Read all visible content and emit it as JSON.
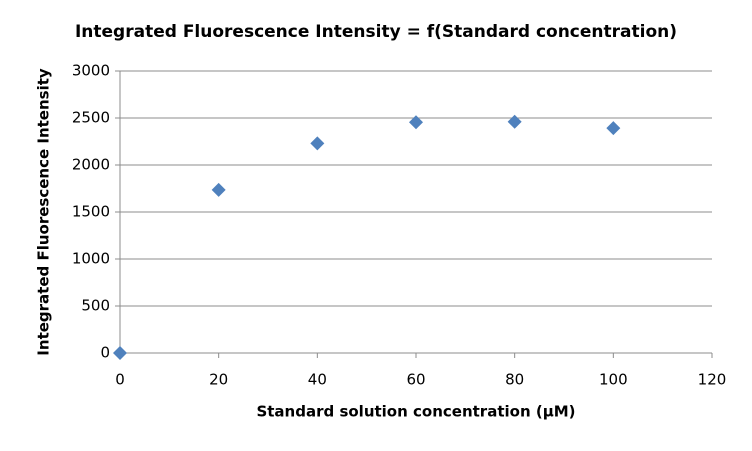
{
  "chart_data": {
    "type": "scatter",
    "title": "Integrated Fluorescence Intensity = f(Standard  concentration)",
    "x_label": "Standard solution concentration (µM)",
    "y_label": "Integrated Fluorescence Intensity",
    "series": [
      {
        "x": [
          0,
          20,
          40,
          60,
          80,
          100
        ],
        "values": [
          0,
          1735,
          2230,
          2455,
          2460,
          2392
        ],
        "color": "#4f81bd"
      }
    ],
    "xlim": [
      0,
      120
    ],
    "xticks": [
      0,
      20,
      40,
      60,
      80,
      100,
      120
    ],
    "ylim": [
      0,
      3000
    ],
    "yticks": [
      0,
      500,
      1000,
      1500,
      2000,
      2500,
      3000
    ],
    "grid": true
  }
}
